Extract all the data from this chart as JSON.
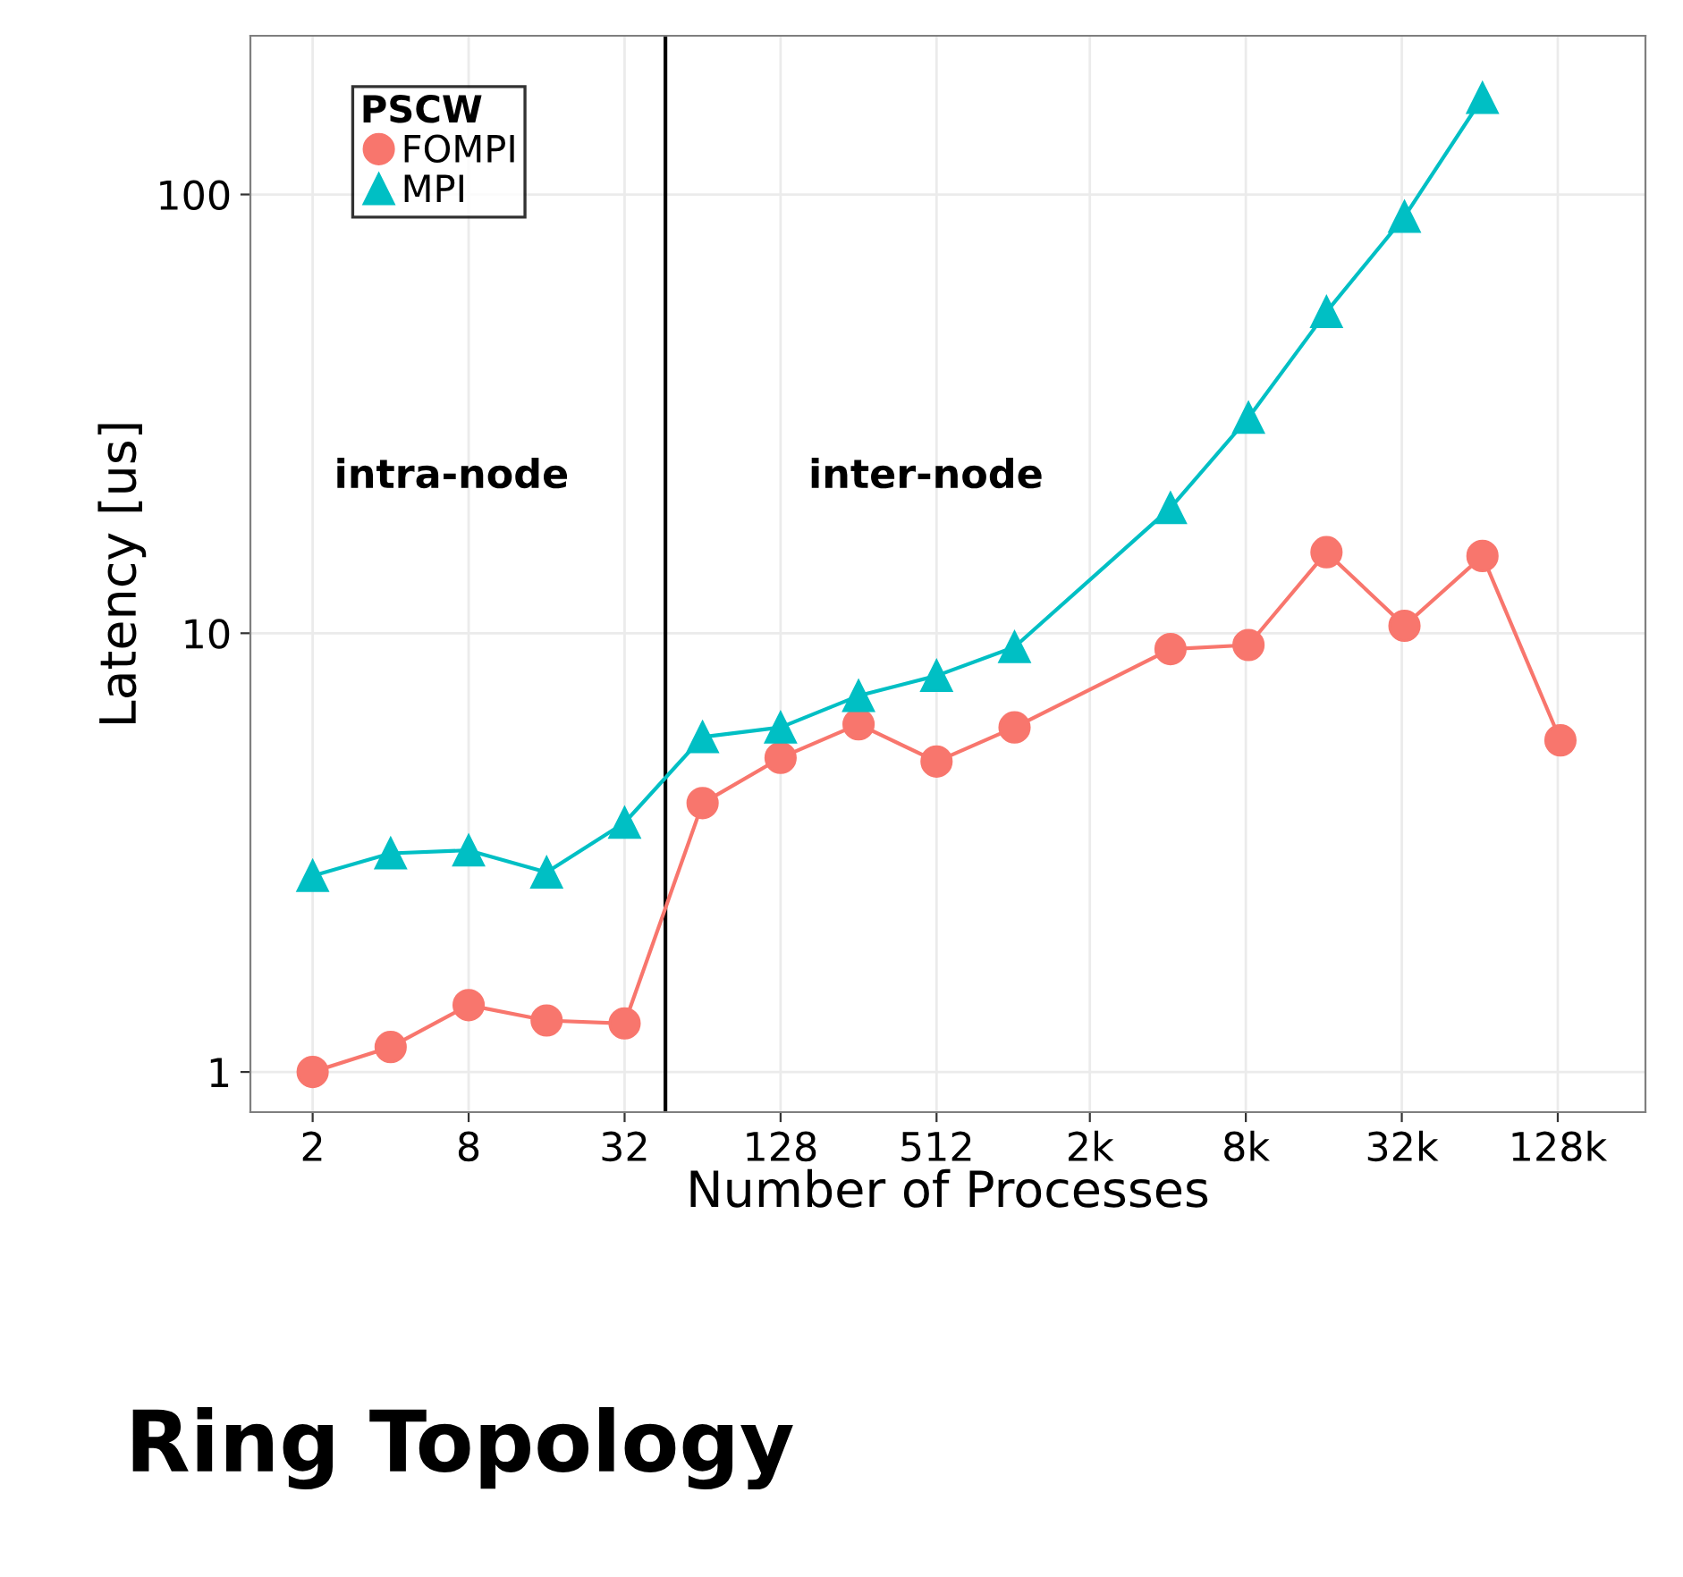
{
  "chart_data": {
    "type": "line",
    "title": "Ring Topology",
    "xlabel": "Number of Processes",
    "ylabel": "Latency [us]",
    "legend_title": "PSCW",
    "annotations": [
      "intra-node",
      "inter-node"
    ],
    "series": [
      {
        "name": "FOMPI",
        "color": "#f8766d",
        "marker": "circle",
        "x": [
          2,
          4,
          8,
          16,
          32,
          64,
          128,
          256,
          512,
          1024,
          4096,
          8192,
          16384,
          32768,
          65536,
          131072
        ],
        "values": [
          1.0,
          1.14,
          1.42,
          1.31,
          1.29,
          4.1,
          5.2,
          6.2,
          5.1,
          6.1,
          9.2,
          9.4,
          15.3,
          10.4,
          15.0,
          5.7
        ]
      },
      {
        "name": "MPI",
        "color": "#00bfc4",
        "marker": "triangle",
        "x": [
          2,
          4,
          8,
          16,
          32,
          64,
          128,
          256,
          512,
          1024,
          4096,
          8192,
          16384,
          32768,
          65536
        ],
        "values": [
          2.8,
          3.15,
          3.2,
          2.85,
          3.7,
          5.8,
          6.1,
          7.2,
          8.0,
          9.3,
          19.3,
          31,
          54,
          89,
          166
        ]
      }
    ],
    "log": "xy",
    "xlim": [
      1.15,
      279000
    ],
    "ylim": [
      0.81,
      230
    ],
    "xticks": [
      2,
      8,
      32,
      128,
      512,
      {
        "value": 2000,
        "label": "2k"
      },
      {
        "value": 8000,
        "label": "8k"
      },
      {
        "value": 32000,
        "label": "32k"
      },
      {
        "value": 128000,
        "label": "128k"
      }
    ],
    "yticks": [
      1,
      10,
      100
    ],
    "ref_lines": [
      {
        "axis": "x",
        "value": 46,
        "color": "#000000"
      }
    ],
    "grid": true,
    "legend": "top left"
  }
}
